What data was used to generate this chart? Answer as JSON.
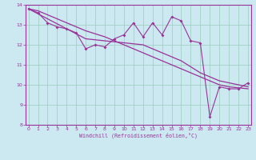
{
  "xlabel": "Windchill (Refroidissement éolien,°C)",
  "bg_color": "#cce8f0",
  "line_color": "#993399",
  "grid_color": "#99ccbb",
  "x_hours": [
    0,
    1,
    2,
    3,
    4,
    5,
    6,
    7,
    8,
    9,
    10,
    11,
    12,
    13,
    14,
    15,
    16,
    17,
    18,
    19,
    20,
    21,
    22,
    23
  ],
  "y_windchill": [
    13.8,
    13.6,
    13.1,
    12.9,
    12.8,
    12.6,
    11.8,
    12.0,
    11.9,
    12.3,
    12.5,
    13.1,
    12.4,
    13.1,
    12.5,
    13.4,
    13.2,
    12.2,
    12.1,
    8.4,
    9.9,
    9.8,
    9.8,
    10.1
  ],
  "y_upper_line": [
    13.8,
    13.55,
    13.3,
    13.05,
    12.8,
    12.55,
    12.3,
    12.25,
    12.2,
    12.15,
    12.1,
    12.05,
    12.0,
    11.8,
    11.6,
    11.4,
    11.2,
    10.9,
    10.6,
    10.4,
    10.2,
    10.1,
    10.0,
    9.9
  ],
  "y_lower_line": [
    13.8,
    13.7,
    13.5,
    13.3,
    13.1,
    12.9,
    12.7,
    12.55,
    12.4,
    12.2,
    12.0,
    11.8,
    11.6,
    11.4,
    11.2,
    11.0,
    10.8,
    10.6,
    10.4,
    10.2,
    10.0,
    9.9,
    9.85,
    9.8
  ],
  "ylim": [
    8,
    14
  ],
  "yticks": [
    8,
    9,
    10,
    11,
    12,
    13,
    14
  ],
  "xticks": [
    0,
    1,
    2,
    3,
    4,
    5,
    6,
    7,
    8,
    9,
    10,
    11,
    12,
    13,
    14,
    15,
    16,
    17,
    18,
    19,
    20,
    21,
    22,
    23
  ]
}
